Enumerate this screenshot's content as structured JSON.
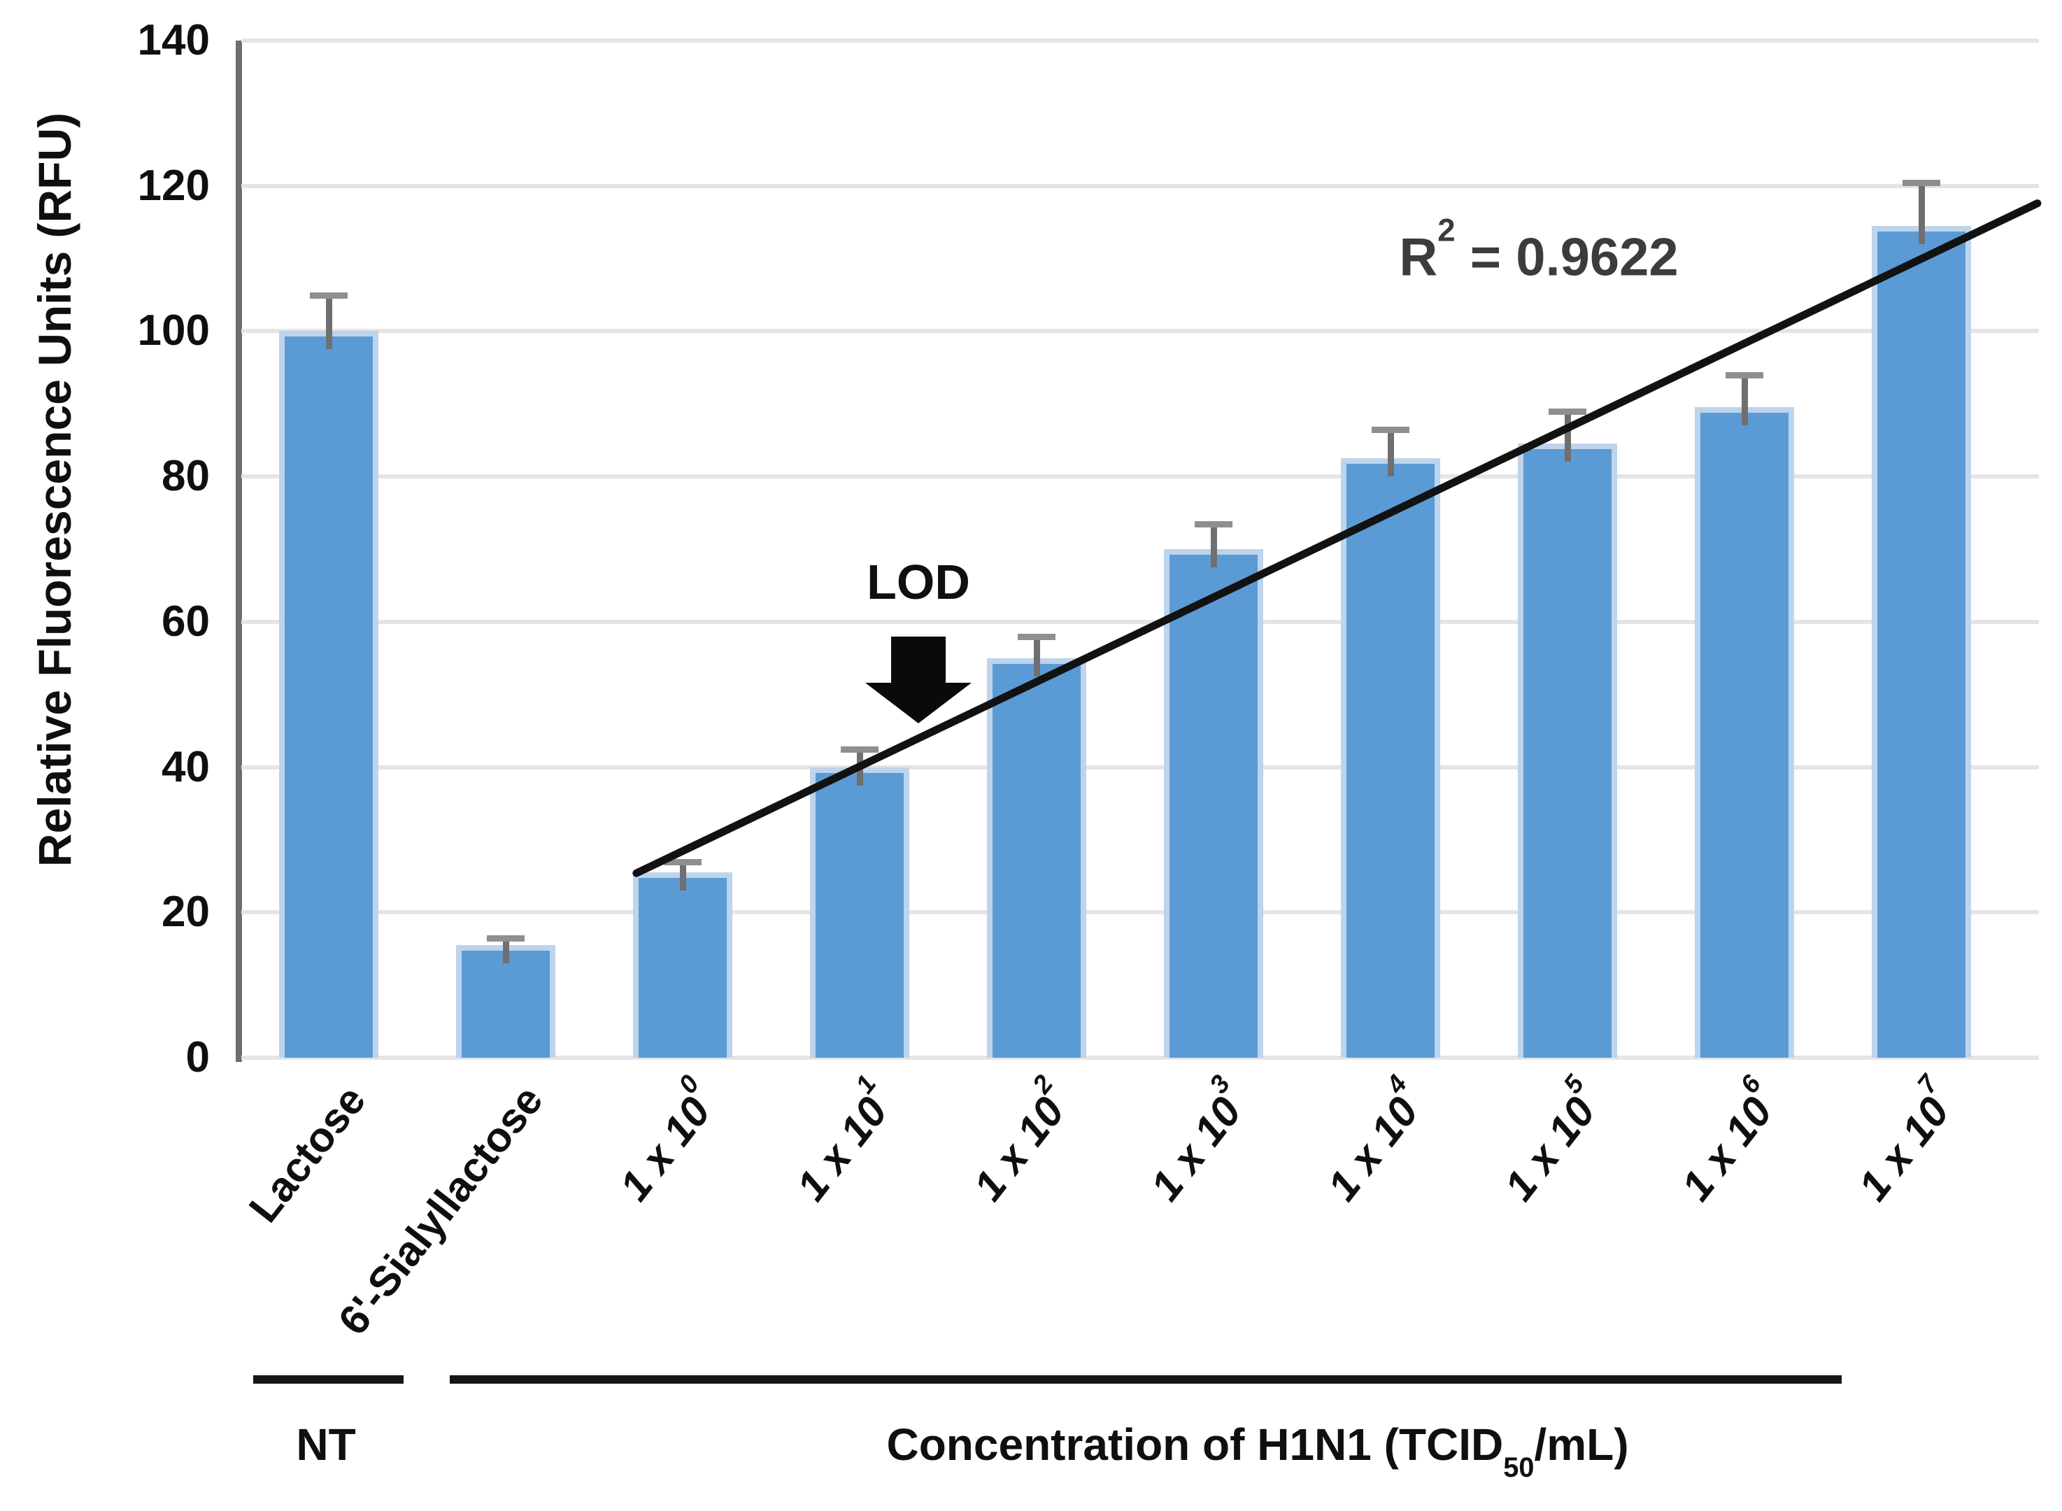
{
  "figure": {
    "y_axis": {
      "title": "Relative Fluorescence Units (RFU)",
      "ticks": [
        0,
        20,
        40,
        60,
        80,
        100,
        120,
        140
      ]
    },
    "annotations": {
      "r2_base": "R",
      "r2_sup": "2",
      "r2_rest": " = 0.9622",
      "lod_label": "LOD"
    },
    "x_groups": [
      {
        "label": "NT"
      },
      {
        "label_base": "Concentration of H1N1 (TCID",
        "label_sub": "50",
        "label_end": "/mL)"
      }
    ]
  },
  "chart_data": {
    "type": "bar",
    "title": "",
    "xlabel": "Concentration of H1N1 (TCID50/mL)",
    "ylabel": "Relative Fluorescence Units (RFU)",
    "ylim": [
      0,
      140
    ],
    "grid": "horizontal",
    "legend": "none",
    "categories": [
      {
        "base": "Lactose",
        "sup": "",
        "italic": false
      },
      {
        "base": "6'-Sialyllactose",
        "sup": "",
        "italic": false
      },
      {
        "base": "1 x 10",
        "sup": "0",
        "italic": true
      },
      {
        "base": "1 x 10",
        "sup": "1",
        "italic": true
      },
      {
        "base": "1 x 10",
        "sup": "2",
        "italic": true
      },
      {
        "base": "1 x 10",
        "sup": "3",
        "italic": true
      },
      {
        "base": "1 x 10",
        "sup": "4",
        "italic": true
      },
      {
        "base": "1 x 10",
        "sup": "5",
        "italic": true
      },
      {
        "base": "1 x 10",
        "sup": "6",
        "italic": true
      },
      {
        "base": "1 x 10",
        "sup": "7",
        "italic": true
      }
    ],
    "values": [
      100,
      15.5,
      25.5,
      40,
      55,
      70,
      82.5,
      84.5,
      89.5,
      114.5
    ],
    "errors_plus": [
      5,
      1,
      1.5,
      2.5,
      3,
      3.5,
      4,
      4.5,
      4.5,
      6
    ],
    "trendline": {
      "r_squared": 0.9622,
      "x1_frac": 0.2198,
      "y1": 25.4,
      "x2_frac": 0.9992,
      "y2": 117.6
    },
    "colors": {
      "bar_fill": "#5b9bd5",
      "bar_edge": "#bdd4ec",
      "error_line": "#6f6f6f",
      "error_cap": "#8f8f8f",
      "gridline": "#e5e5e5",
      "axis_line": "#6d6d6d",
      "trend_line": "#121212"
    }
  }
}
